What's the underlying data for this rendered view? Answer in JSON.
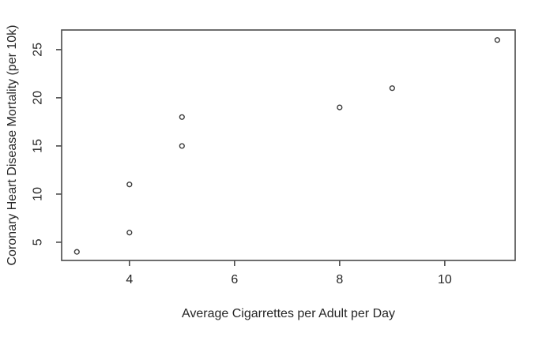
{
  "chart_data": {
    "type": "scatter",
    "title": "",
    "xlabel": "Average Cigarrettes per Adult per Day",
    "ylabel": "Coronary Heart Disease Mortality (per 10k)",
    "points": [
      {
        "x": 3,
        "y": 4
      },
      {
        "x": 4,
        "y": 6
      },
      {
        "x": 4,
        "y": 11
      },
      {
        "x": 5,
        "y": 15
      },
      {
        "x": 5,
        "y": 18
      },
      {
        "x": 8,
        "y": 19
      },
      {
        "x": 9,
        "y": 21
      },
      {
        "x": 11,
        "y": 26
      }
    ],
    "x_ticks": [
      4,
      6,
      8,
      10
    ],
    "y_ticks": [
      5,
      10,
      15,
      20,
      25
    ],
    "xlim": [
      2.71,
      11.34
    ],
    "ylim": [
      3.11,
      27.04
    ],
    "marker": "open-circle",
    "grid": false,
    "legend": null,
    "colors": {
      "background": "#ffffff",
      "frame": "#4a4a4a",
      "tick": "#4a4a4a",
      "text": "#262626",
      "marker_stroke": "#3d3d3d",
      "marker_fill": "#ffffff"
    }
  }
}
